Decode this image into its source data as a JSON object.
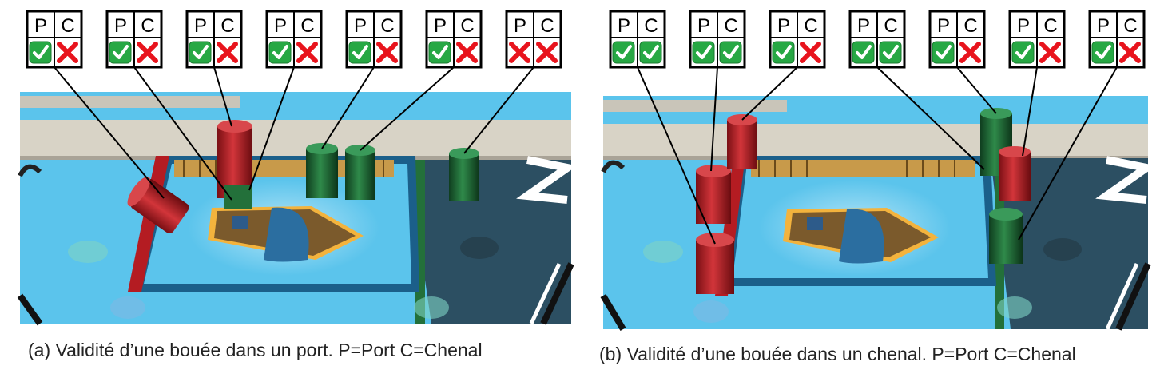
{
  "panels": [
    {
      "id": "a",
      "caption": "(a) Validité d’une bouée dans un port. P=Port C=Chenal",
      "header": {
        "p": "P",
        "c": "C"
      },
      "indicators": [
        {
          "p": true,
          "c": false
        },
        {
          "p": true,
          "c": false
        },
        {
          "p": true,
          "c": false
        },
        {
          "p": true,
          "c": false
        },
        {
          "p": true,
          "c": false
        },
        {
          "p": true,
          "c": false
        },
        {
          "p": false,
          "c": false
        }
      ],
      "buoys": [
        {
          "color": "red",
          "pose": "fallen"
        },
        {
          "color": "red",
          "pose": "upright"
        },
        {
          "color": "green",
          "pose": "upright"
        },
        {
          "color": "green",
          "pose": "upright"
        },
        {
          "color": "green",
          "pose": "upright"
        },
        {
          "color": "green",
          "pose": "upright"
        }
      ]
    },
    {
      "id": "b",
      "caption": "(b) Validité d’une bouée dans un chenal. P=Port C=Chenal",
      "header": {
        "p": "P",
        "c": "C"
      },
      "indicators": [
        {
          "p": true,
          "c": true
        },
        {
          "p": true,
          "c": true
        },
        {
          "p": true,
          "c": false
        },
        {
          "p": true,
          "c": true
        },
        {
          "p": true,
          "c": false
        },
        {
          "p": true,
          "c": false
        },
        {
          "p": true,
          "c": false
        }
      ],
      "buoys": [
        {
          "color": "red",
          "pose": "upright"
        },
        {
          "color": "red",
          "pose": "upright"
        },
        {
          "color": "red",
          "pose": "upright"
        },
        {
          "color": "green",
          "pose": "upright"
        },
        {
          "color": "red",
          "pose": "upright"
        },
        {
          "color": "green",
          "pose": "upright"
        }
      ]
    }
  ],
  "colors": {
    "check": "#27a844",
    "cross": "#e8141d",
    "water_light": "#5bc4ec",
    "water_dark": "#2c4f62",
    "buoy_red": "#b41c22",
    "buoy_green": "#23703a"
  }
}
